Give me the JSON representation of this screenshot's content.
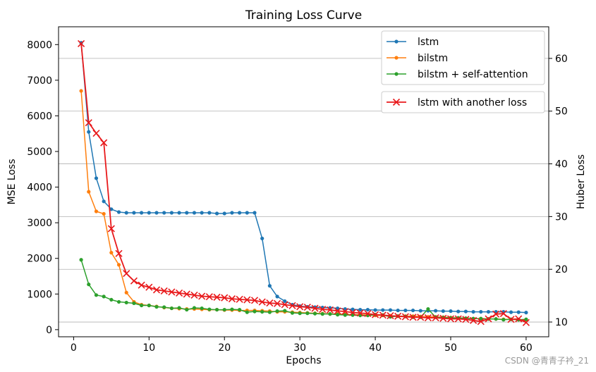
{
  "chart_data": {
    "type": "line",
    "title": "Training Loss Curve",
    "xlabel": "Epochs",
    "ylabel": "MSE Loss",
    "y2label": "Huber Loss",
    "xlim": [
      -2,
      63
    ],
    "ylim": [
      -200,
      8500
    ],
    "y2lim": [
      7.2,
      66.0
    ],
    "xticks": [
      0,
      10,
      20,
      30,
      40,
      50,
      60
    ],
    "yticks": [
      0,
      1000,
      2000,
      3000,
      4000,
      5000,
      6000,
      7000,
      8000
    ],
    "y2ticks": [
      10,
      20,
      30,
      40,
      50,
      60
    ],
    "grid": "right-axis horizontal",
    "x": [
      1,
      2,
      3,
      4,
      5,
      6,
      7,
      8,
      9,
      10,
      11,
      12,
      13,
      14,
      15,
      16,
      17,
      18,
      19,
      20,
      21,
      22,
      23,
      24,
      25,
      26,
      27,
      28,
      29,
      30,
      31,
      32,
      33,
      34,
      35,
      36,
      37,
      38,
      39,
      40,
      41,
      42,
      43,
      44,
      45,
      46,
      47,
      48,
      49,
      50,
      51,
      52,
      53,
      54,
      55,
      56,
      57,
      58,
      59,
      60
    ],
    "series": [
      {
        "name": "lstm",
        "axis": "left",
        "color": "#1f77b4",
        "marker": "dot",
        "values": [
          8050,
          5550,
          4250,
          3600,
          3380,
          3300,
          3280,
          3280,
          3280,
          3280,
          3280,
          3280,
          3280,
          3280,
          3280,
          3280,
          3280,
          3280,
          3260,
          3260,
          3280,
          3280,
          3280,
          3280,
          2560,
          1230,
          930,
          800,
          700,
          660,
          640,
          630,
          620,
          610,
          600,
          580,
          570,
          560,
          560,
          550,
          550,
          550,
          540,
          540,
          540,
          530,
          530,
          530,
          520,
          520,
          510,
          510,
          500,
          500,
          500,
          500,
          500,
          490,
          490,
          480
        ]
      },
      {
        "name": "bilstm",
        "axis": "left",
        "color": "#ff7f0e",
        "marker": "dot",
        "values": [
          6700,
          3870,
          3320,
          3250,
          2160,
          1820,
          1040,
          780,
          700,
          680,
          650,
          620,
          600,
          590,
          580,
          580,
          570,
          560,
          560,
          550,
          550,
          540,
          540,
          540,
          530,
          520,
          500,
          500,
          490,
          480,
          470,
          460,
          450,
          440,
          440,
          430,
          420,
          420,
          410,
          400,
          400,
          390,
          380,
          380,
          380,
          370,
          360,
          360,
          350,
          340,
          330,
          320,
          310,
          310,
          300,
          300,
          290,
          290,
          280,
          280
        ]
      },
      {
        "name": "bilstm + self-attention",
        "axis": "left",
        "color": "#2ca02c",
        "marker": "dot",
        "values": [
          1960,
          1270,
          970,
          930,
          840,
          780,
          760,
          740,
          680,
          680,
          640,
          630,
          600,
          610,
          560,
          610,
          600,
          570,
          560,
          560,
          570,
          560,
          490,
          510,
          500,
          490,
          520,
          530,
          470,
          460,
          460,
          450,
          440,
          440,
          420,
          410,
          410,
          400,
          400,
          420,
          410,
          360,
          380,
          370,
          350,
          350,
          580,
          350,
          340,
          330,
          330,
          320,
          310,
          310,
          300,
          300,
          280,
          290,
          280,
          290
        ]
      },
      {
        "name": "lstm with another loss",
        "axis": "right",
        "color": "#e8191b",
        "marker": "x",
        "values": [
          62.8,
          47.8,
          45.8,
          44.0,
          27.7,
          23.0,
          19.2,
          17.8,
          17.0,
          16.6,
          16.1,
          15.9,
          15.7,
          15.5,
          15.3,
          15.1,
          14.9,
          14.8,
          14.7,
          14.6,
          14.4,
          14.3,
          14.2,
          14.1,
          13.8,
          13.6,
          13.5,
          13.3,
          13.1,
          12.9,
          12.8,
          12.6,
          12.4,
          12.3,
          12.1,
          12.0,
          11.8,
          11.7,
          11.6,
          11.4,
          11.3,
          11.2,
          11.1,
          11.0,
          10.9,
          10.9,
          10.8,
          10.8,
          10.7,
          10.6,
          10.6,
          10.5,
          10.3,
          10.1,
          10.6,
          11.5,
          11.6,
          10.5,
          10.6,
          9.9
        ]
      }
    ]
  },
  "watermark": "CSDN @青青子衿_21"
}
